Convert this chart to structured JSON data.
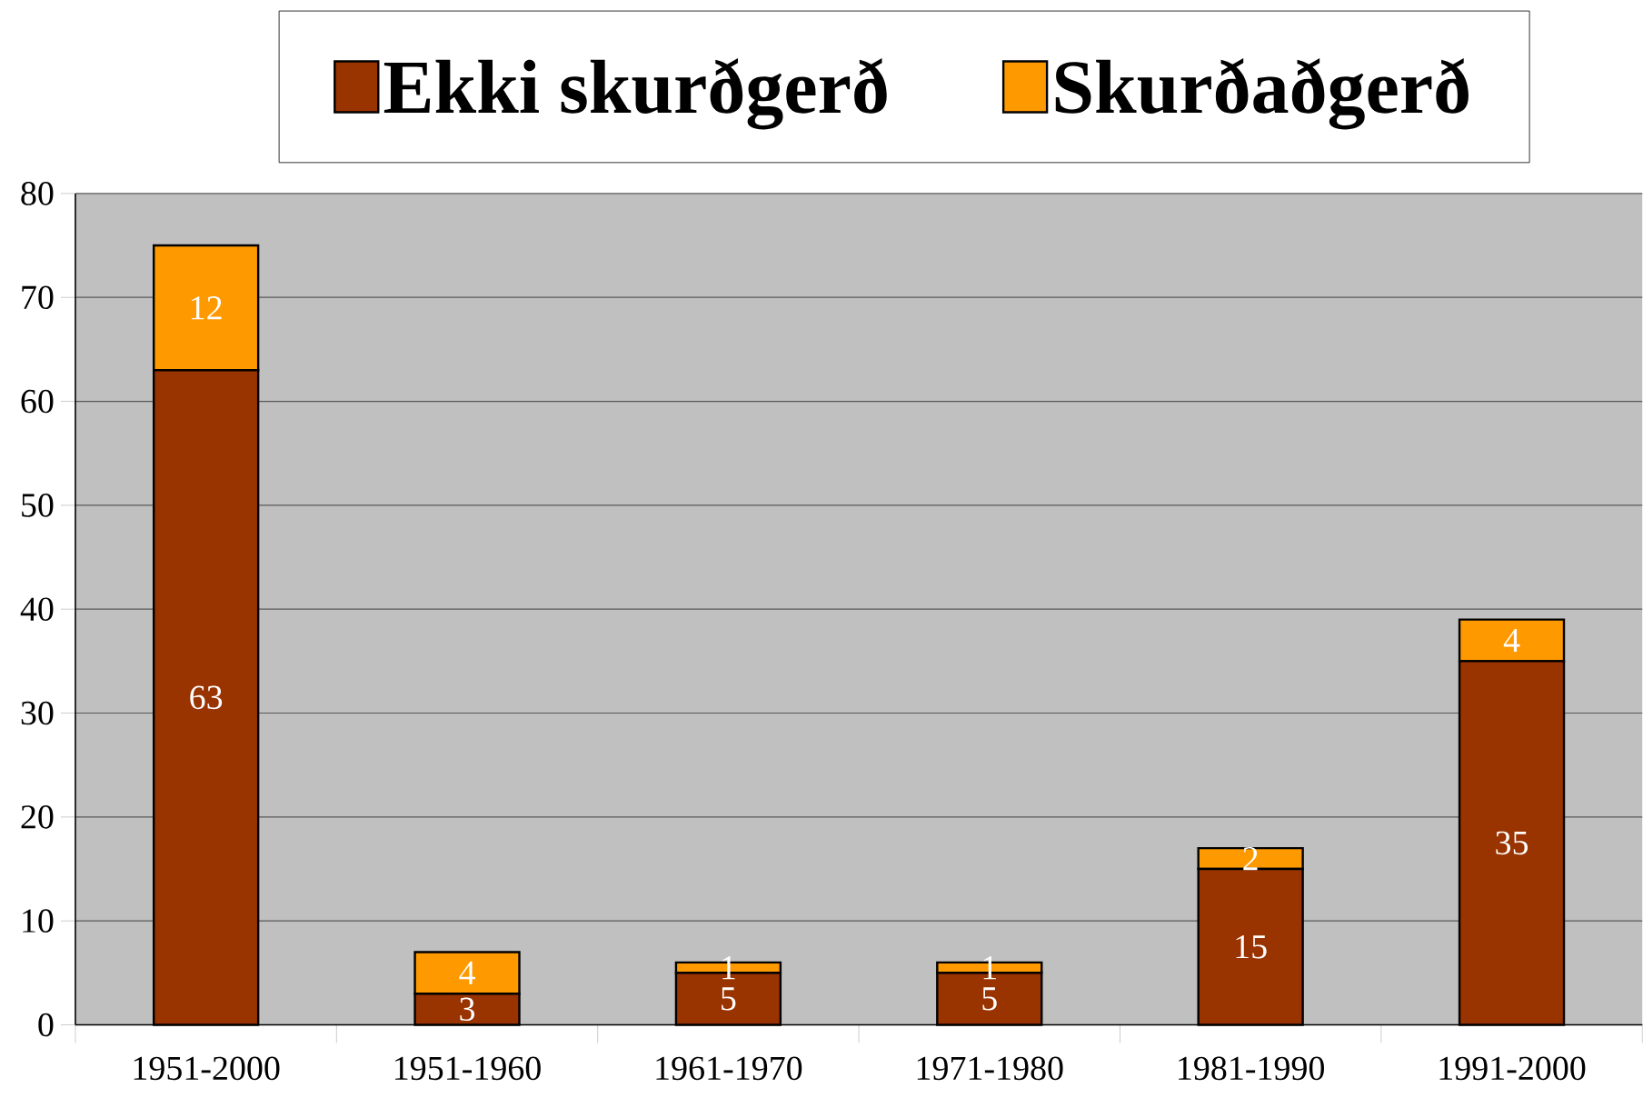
{
  "chart_data": {
    "type": "bar",
    "stacked": true,
    "categories": [
      "1951-2000",
      "1951-1960",
      "1961-1970",
      "1971-1980",
      "1981-1990",
      "1991-2000"
    ],
    "series": [
      {
        "name": "Ekki skurðgerð",
        "color": "#993300",
        "values": [
          63,
          3,
          5,
          5,
          15,
          35
        ]
      },
      {
        "name": "Skurðaðgerð",
        "color": "#ff9900",
        "values": [
          12,
          4,
          1,
          1,
          2,
          4
        ]
      }
    ],
    "ylim": [
      0,
      80
    ],
    "yticks": [
      0,
      10,
      20,
      30,
      40,
      50,
      60,
      70,
      80
    ],
    "grid": "y",
    "legend": "top",
    "data_labels": true
  }
}
